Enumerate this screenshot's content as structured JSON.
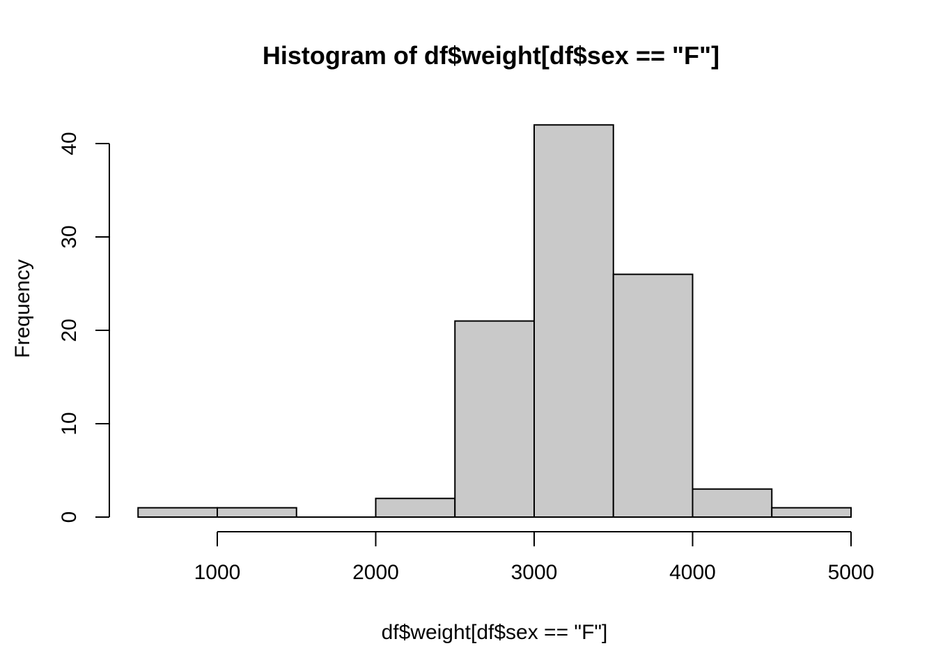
{
  "chart_data": {
    "type": "bar",
    "subtype": "histogram",
    "title": "Histogram of df$weight[df$sex == \"F\"]",
    "xlabel": "df$weight[df$sex == \"F\"]",
    "ylabel": "Frequency",
    "bin_edges": [
      500,
      1000,
      1500,
      2000,
      2500,
      3000,
      3500,
      4000,
      4500,
      5000
    ],
    "counts": [
      1,
      1,
      0,
      2,
      21,
      42,
      26,
      3,
      1
    ],
    "x_ticks": [
      1000,
      2000,
      3000,
      4000,
      5000
    ],
    "x_tick_labels": [
      "1000",
      "2000",
      "3000",
      "4000",
      "5000"
    ],
    "y_ticks": [
      0,
      10,
      20,
      30,
      40
    ],
    "y_tick_labels": [
      "0",
      "10",
      "20",
      "30",
      "40"
    ],
    "xlim": [
      500,
      5000
    ],
    "ylim": [
      0,
      42
    ],
    "grid": false,
    "legend": "none",
    "colors": {
      "bar_fill": "#c9c9c9",
      "bar_stroke": "#000000",
      "axis": "#000000",
      "text": "#000000",
      "background": "#ffffff"
    }
  }
}
